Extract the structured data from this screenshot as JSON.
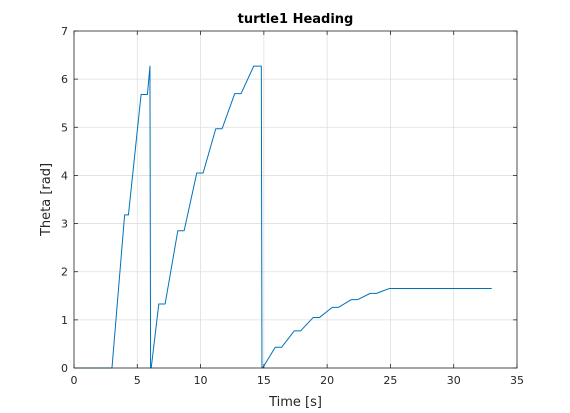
{
  "chart_data": {
    "type": "line",
    "title": "turtle1 Heading",
    "xlabel": "Time [s]",
    "ylabel": "Theta [rad]",
    "xlim": [
      0,
      35
    ],
    "ylim": [
      0,
      7
    ],
    "xticks": [
      0,
      5,
      10,
      15,
      20,
      25,
      30,
      35
    ],
    "yticks": [
      0,
      1,
      2,
      3,
      4,
      5,
      6,
      7
    ],
    "xtick_labels": [
      "0",
      "5",
      "10",
      "15",
      "20",
      "25",
      "30",
      "35"
    ],
    "ytick_labels": [
      "0",
      "1",
      "2",
      "3",
      "4",
      "5",
      "6",
      "7"
    ],
    "grid": true,
    "series": [
      {
        "color": "#0072BD",
        "x": [
          0,
          3.0,
          4.0,
          4.3,
          5.3,
          5.8,
          6.0,
          6.05,
          6.1,
          6.7,
          7.2,
          8.2,
          8.7,
          9.7,
          10.2,
          11.2,
          11.7,
          12.7,
          13.2,
          14.2,
          14.8,
          14.85,
          14.9,
          15.9,
          16.4,
          17.4,
          17.9,
          18.9,
          19.4,
          20.4,
          20.9,
          21.9,
          22.4,
          23.4,
          23.9,
          24.9,
          33.0
        ],
        "y": [
          0,
          0,
          3.18,
          3.18,
          5.68,
          5.68,
          6.27,
          0,
          0,
          1.33,
          1.33,
          2.85,
          2.85,
          4.05,
          4.05,
          4.97,
          4.97,
          5.7,
          5.7,
          6.27,
          6.27,
          0,
          0,
          0.43,
          0.43,
          0.77,
          0.77,
          1.05,
          1.05,
          1.26,
          1.26,
          1.42,
          1.42,
          1.55,
          1.55,
          1.65,
          1.65
        ]
      }
    ]
  }
}
